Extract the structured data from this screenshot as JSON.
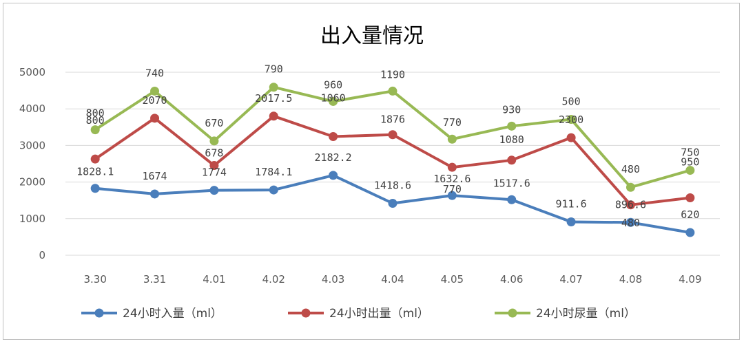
{
  "chart_data": {
    "type": "line",
    "title": "出入量情况",
    "xlabel": "",
    "ylabel": "",
    "categories": [
      "3.30",
      "3.31",
      "4.01",
      "4.02",
      "4.03",
      "4.04",
      "4.05",
      "4.06",
      "4.07",
      "4.08",
      "4.09"
    ],
    "ylim": [
      0,
      5000
    ],
    "yticks": [
      0,
      1000,
      2000,
      3000,
      4000,
      5000
    ],
    "grid": true,
    "legend_position": "bottom",
    "stacked": true,
    "series": [
      {
        "name": "24小时入量（ml）",
        "color": "#4a7ebb",
        "values": [
          1828.1,
          1674,
          1774,
          1784.1,
          2182.2,
          1418.6,
          1632.6,
          1517.6,
          911.6,
          896.6,
          620
        ],
        "labels": [
          "1828.1",
          "1674",
          "1774",
          "1784.1",
          "2182.2",
          "1418.6",
          "1632.6",
          "1517.6",
          "911.6",
          "896.6",
          "620"
        ]
      },
      {
        "name": "24小时出量（ml）",
        "color": "#be4b48",
        "values": [
          800,
          2070,
          678,
          2017.5,
          1060,
          1876,
          770,
          1080,
          2300,
          480,
          950
        ],
        "labels": [
          "800",
          "2070",
          "678",
          "2017.5",
          "1060",
          "1876",
          "770",
          "1080",
          "2300",
          "480",
          "950"
        ]
      },
      {
        "name": "24小时尿量（ml）",
        "color": "#98b954",
        "values": [
          800,
          740,
          670,
          790,
          960,
          1190,
          770,
          930,
          500,
          480,
          750
        ],
        "labels": [
          "800",
          "740",
          "670",
          "790",
          "960",
          "1190",
          "770",
          "930",
          "500",
          "480",
          "750"
        ]
      }
    ]
  }
}
